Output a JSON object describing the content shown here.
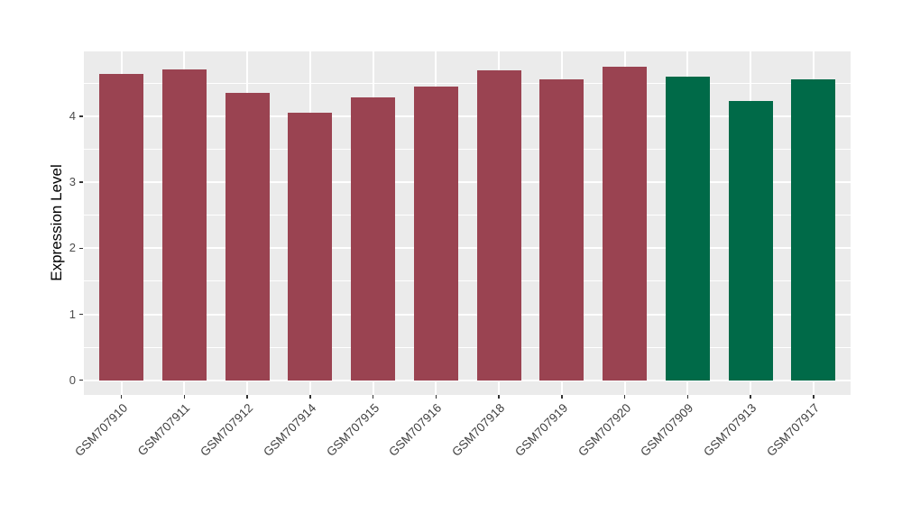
{
  "chart_data": {
    "type": "bar",
    "ylabel": "Expression Level",
    "xlabel": "",
    "categories": [
      "GSM707910",
      "GSM707911",
      "GSM707912",
      "GSM707914",
      "GSM707915",
      "GSM707916",
      "GSM707918",
      "GSM707919",
      "GSM707920",
      "GSM707909",
      "GSM707913",
      "GSM707917"
    ],
    "values": [
      4.64,
      4.71,
      4.35,
      4.06,
      4.28,
      4.45,
      4.69,
      4.56,
      4.75,
      4.6,
      4.23,
      4.56
    ],
    "bar_colors": [
      "#9A4351",
      "#9A4351",
      "#9A4351",
      "#9A4351",
      "#9A4351",
      "#9A4351",
      "#9A4351",
      "#9A4351",
      "#9A4351",
      "#006A48",
      "#006A48",
      "#006A48"
    ],
    "yticks": [
      0,
      1,
      2,
      3,
      4
    ],
    "yticks_minor": [
      0.5,
      1.5,
      2.5,
      3.5,
      4.5
    ],
    "ylim": [
      -0.24,
      4.98
    ],
    "legend": "none",
    "grid": "white major + minor horizontal lines, white major vertical lines on gray panel",
    "panel_bg": "#EBEBEB",
    "grid_color": "#FFFFFF",
    "axis_text_color": "#4D4D4D",
    "axis_title_color": "#000000",
    "x_label_angle_deg": 45
  }
}
